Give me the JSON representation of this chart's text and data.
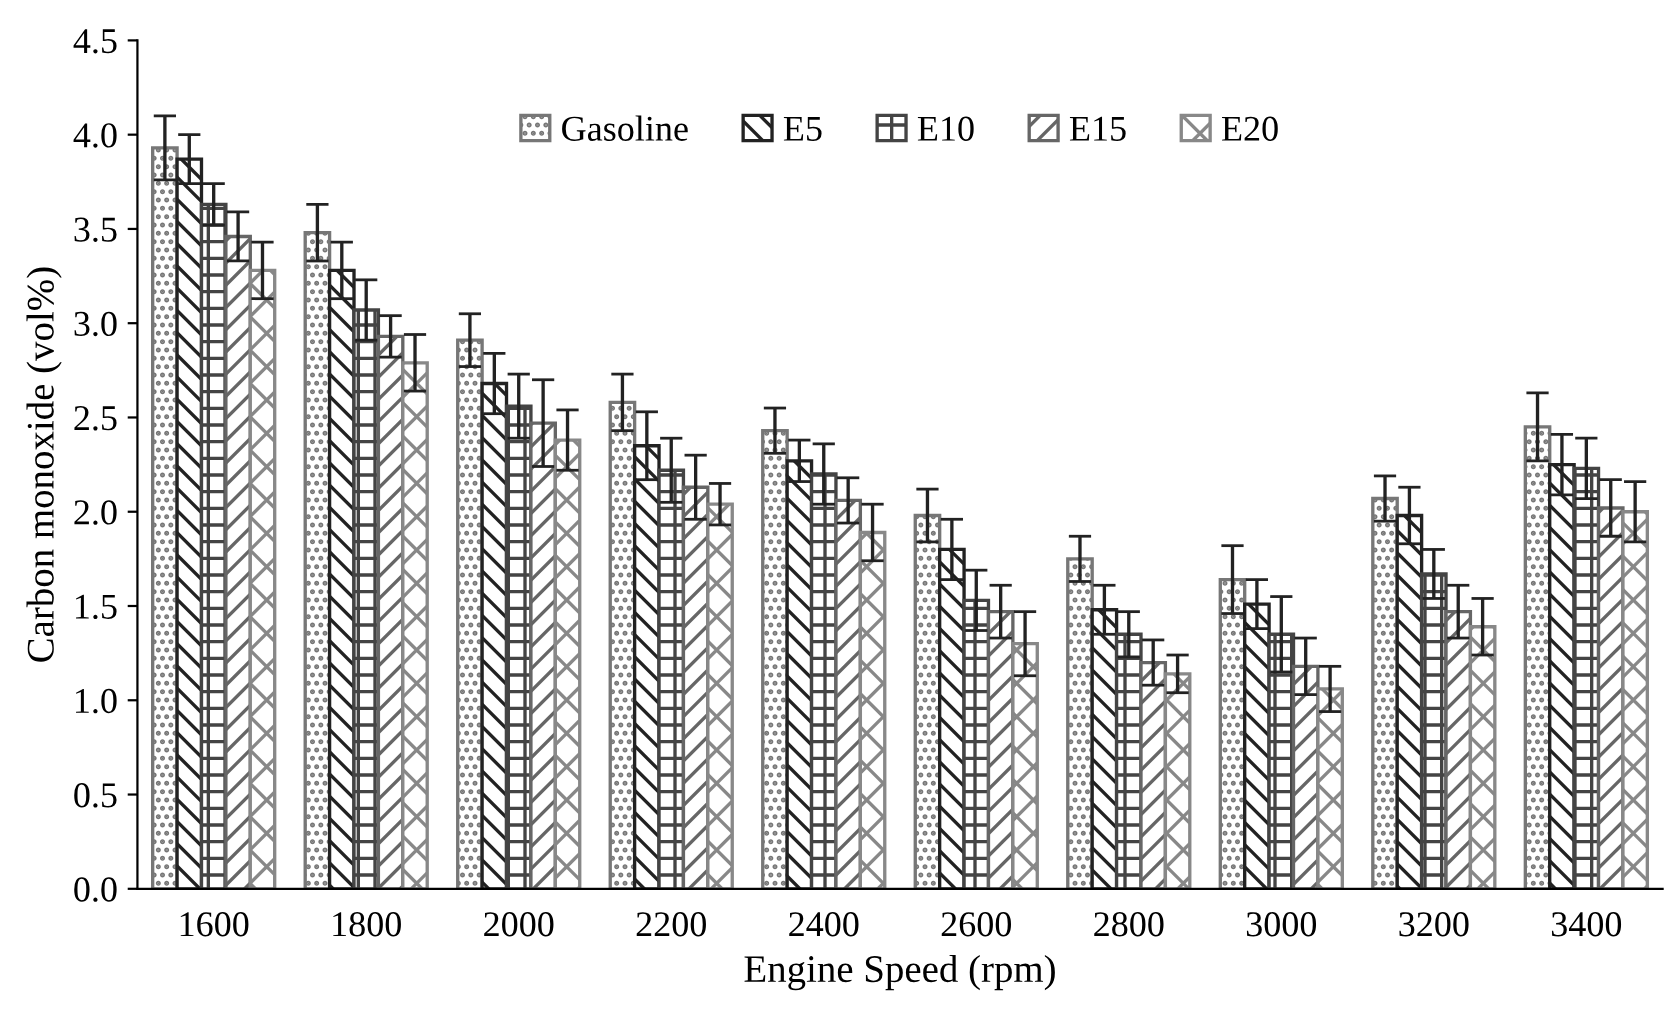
{
  "chart_data": {
    "type": "bar",
    "xlabel": "Engine Speed (rpm)",
    "ylabel": "Carbon monoxide (vol%)",
    "categories": [
      "1600",
      "1800",
      "2000",
      "2200",
      "2400",
      "2600",
      "2800",
      "3000",
      "3200",
      "3400"
    ],
    "series": [
      {
        "name": "Gasoline",
        "color": "#777777",
        "values": [
          3.93,
          3.48,
          2.91,
          2.58,
          2.43,
          1.98,
          1.75,
          1.64,
          2.07,
          2.45
        ],
        "errors": [
          0.17,
          0.15,
          0.14,
          0.15,
          0.12,
          0.14,
          0.12,
          0.18,
          0.12,
          0.18
        ]
      },
      {
        "name": "E5",
        "color": "#222222",
        "values": [
          3.87,
          3.28,
          2.68,
          2.35,
          2.27,
          1.8,
          1.48,
          1.51,
          1.98,
          2.25
        ],
        "errors": [
          0.13,
          0.15,
          0.16,
          0.18,
          0.11,
          0.16,
          0.13,
          0.13,
          0.15,
          0.16
        ]
      },
      {
        "name": "E10",
        "color": "#444444",
        "values": [
          3.63,
          3.07,
          2.56,
          2.22,
          2.2,
          1.53,
          1.35,
          1.35,
          1.67,
          2.23
        ],
        "errors": [
          0.11,
          0.16,
          0.17,
          0.17,
          0.16,
          0.16,
          0.12,
          0.2,
          0.13,
          0.16
        ]
      },
      {
        "name": "E15",
        "color": "#666666",
        "values": [
          3.46,
          2.93,
          2.47,
          2.13,
          2.06,
          1.47,
          1.2,
          1.18,
          1.47,
          2.02
        ],
        "errors": [
          0.13,
          0.11,
          0.23,
          0.17,
          0.12,
          0.14,
          0.12,
          0.15,
          0.14,
          0.15
        ]
      },
      {
        "name": "E20",
        "color": "#888888",
        "values": [
          3.28,
          2.79,
          2.38,
          2.04,
          1.89,
          1.3,
          1.14,
          1.06,
          1.39,
          2.0
        ],
        "errors": [
          0.15,
          0.15,
          0.16,
          0.11,
          0.15,
          0.17,
          0.1,
          0.12,
          0.15,
          0.16
        ]
      }
    ],
    "ylim": [
      0,
      4.5
    ],
    "yticks": [
      {
        "value": 0,
        "label": "0.0"
      },
      0.5,
      {
        "value": 1,
        "label": "1.0"
      },
      1.5,
      {
        "value": 2,
        "label": "2.0"
      },
      2.5,
      {
        "value": 3,
        "label": "3.0"
      },
      3.5,
      {
        "value": 4,
        "label": "4.0"
      },
      4.5
    ],
    "grid": false,
    "legend": "top"
  }
}
